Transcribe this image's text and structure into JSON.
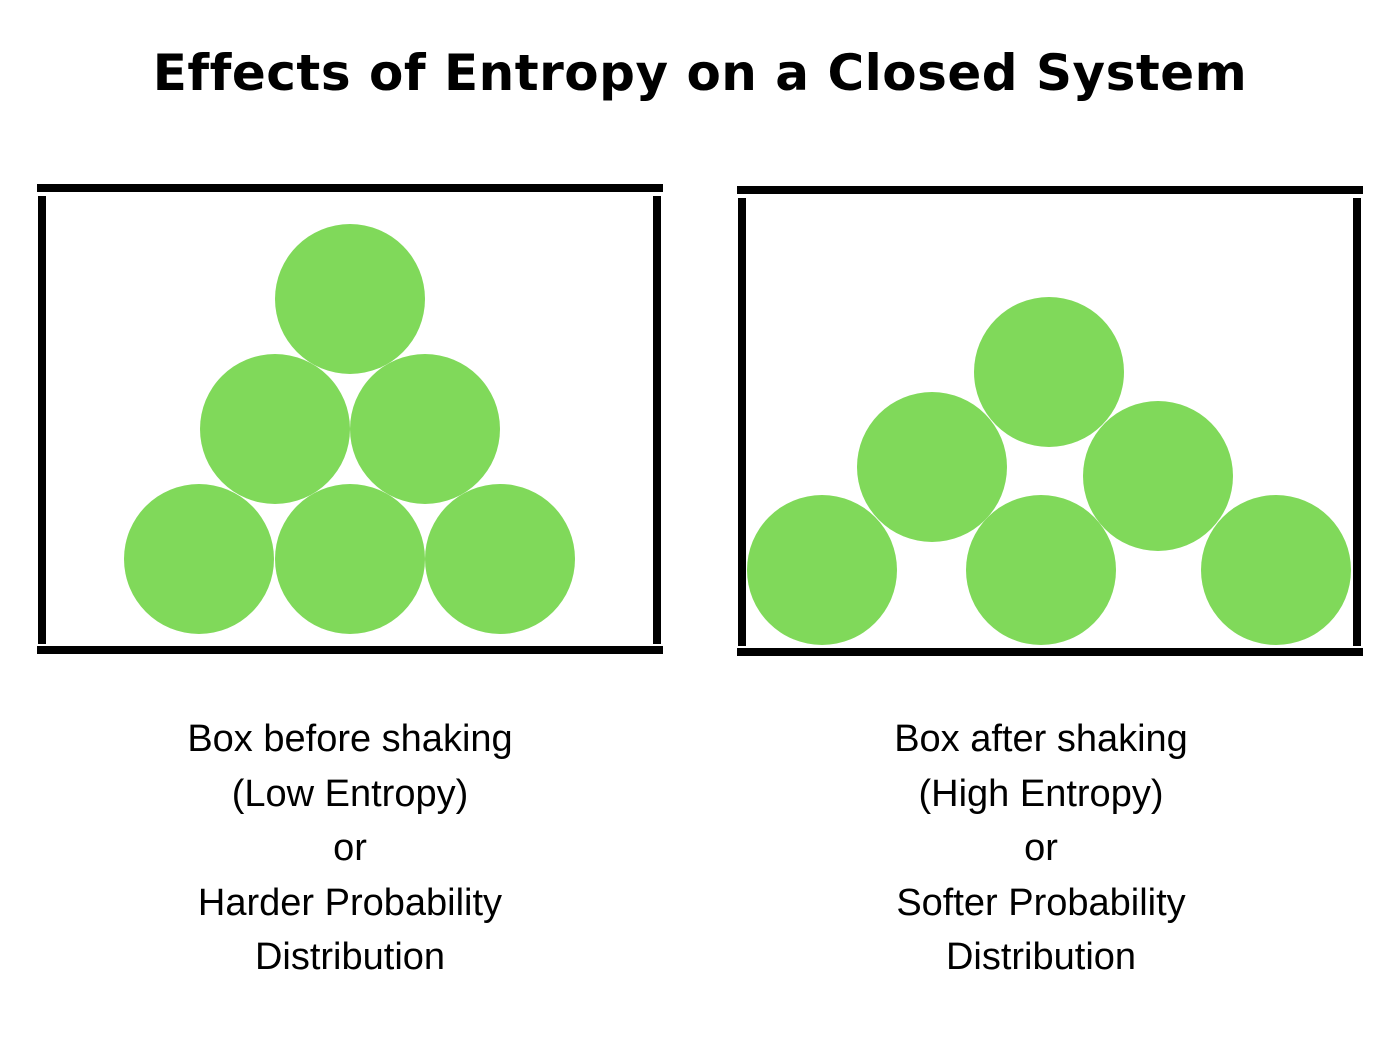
{
  "title": "Effects of Entropy on  a Closed System",
  "colors": {
    "ball": "#80d95a",
    "frame": "#000000",
    "background": "#ffffff"
  },
  "boxes": [
    {
      "name": "before",
      "caption": [
        "Box before shaking",
        "(Low Entropy)",
        "or",
        "Harder Probability",
        "Distribution"
      ]
    },
    {
      "name": "after",
      "caption": [
        "Box after shaking",
        "(High Entropy)",
        "or",
        "Softer Probability",
        "Distribution"
      ]
    }
  ]
}
